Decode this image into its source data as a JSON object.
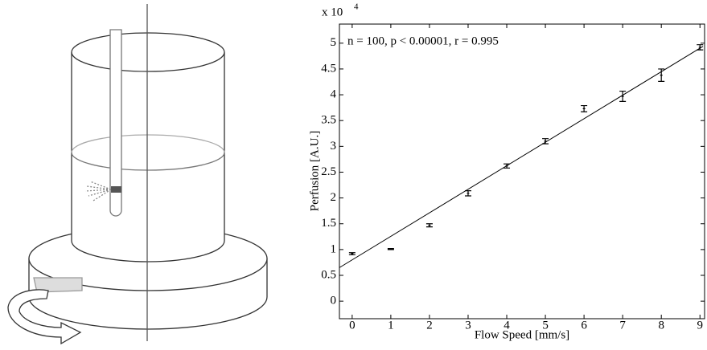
{
  "chart_data": {
    "type": "errorbar",
    "annotation": "n = 100, p < 0.00001, r = 0.995",
    "x_label": "Flow Speed [mm/s]",
    "y_label": "Perfusion [A.U.]",
    "y_scale_text": "x 10",
    "y_scale_exponent": "4",
    "x": [
      0,
      1,
      2,
      3,
      4,
      5,
      6,
      7,
      8,
      9
    ],
    "series": [
      {
        "color": "#000000",
        "values": [
          0.92,
          1.01,
          1.47,
          2.09,
          2.62,
          3.1,
          3.73,
          3.97,
          4.38,
          4.92
        ],
        "errors": [
          0.02,
          0.01,
          0.03,
          0.05,
          0.04,
          0.05,
          0.06,
          0.1,
          0.12,
          0.05
        ]
      }
    ],
    "fit_line": {
      "color": "#000000",
      "x": [
        -0.33,
        9.08
      ],
      "values": [
        0.65,
        4.94
      ]
    },
    "xlim": [
      -0.33,
      9.12
    ],
    "ylim": [
      -0.34,
      5.37
    ],
    "xticks": [
      0,
      1,
      2,
      3,
      4,
      5,
      6,
      7,
      8,
      9
    ],
    "yticks": [
      0,
      0.5,
      1,
      1.5,
      2,
      2.5,
      3,
      3.5,
      4,
      4.5,
      5
    ],
    "grid": false
  }
}
